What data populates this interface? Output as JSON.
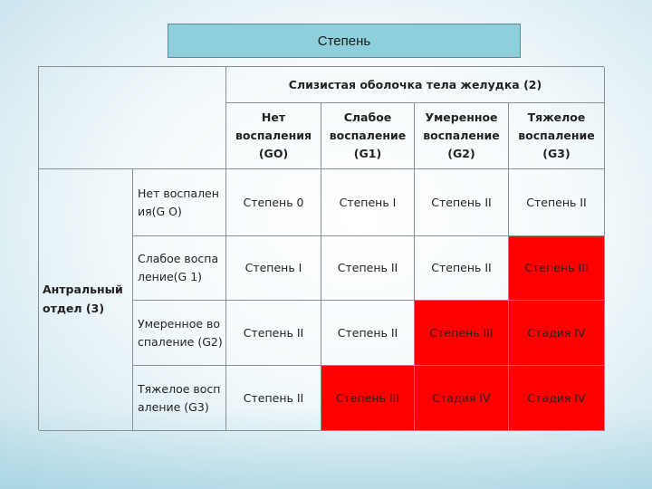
{
  "title": "Степень",
  "table": {
    "group_header": "Слизистая оболочка тела желудка (2)",
    "row_group_label": "Антральный отдел (3)",
    "col_headers": [
      "Нет воспаления (GO)",
      "Слабое воспаление (G1)",
      "Умеренное воспаление (G2)",
      "Тяжелое воспаление (G3)"
    ],
    "rows": [
      {
        "label": "Нет воспаления(G O)",
        "cells": [
          "Степень 0",
          "Степень I",
          "Степень II",
          "Степень II"
        ]
      },
      {
        "label": "Слабое воспаление(G 1)",
        "cells": [
          "Степень I",
          "Степень II",
          "Степень II",
          "Степень III"
        ]
      },
      {
        "label": "Умеренное воспаление (G2)",
        "cells": [
          "Степень II",
          "Степень II",
          "Степень III",
          "Стадия IV"
        ]
      },
      {
        "label": "Тяжелое воспаление (G3)",
        "cells": [
          "Степень II",
          "Степень III",
          "Стадия IV",
          "Стадия IV"
        ]
      }
    ],
    "highlight_color": "#ff0000"
  }
}
